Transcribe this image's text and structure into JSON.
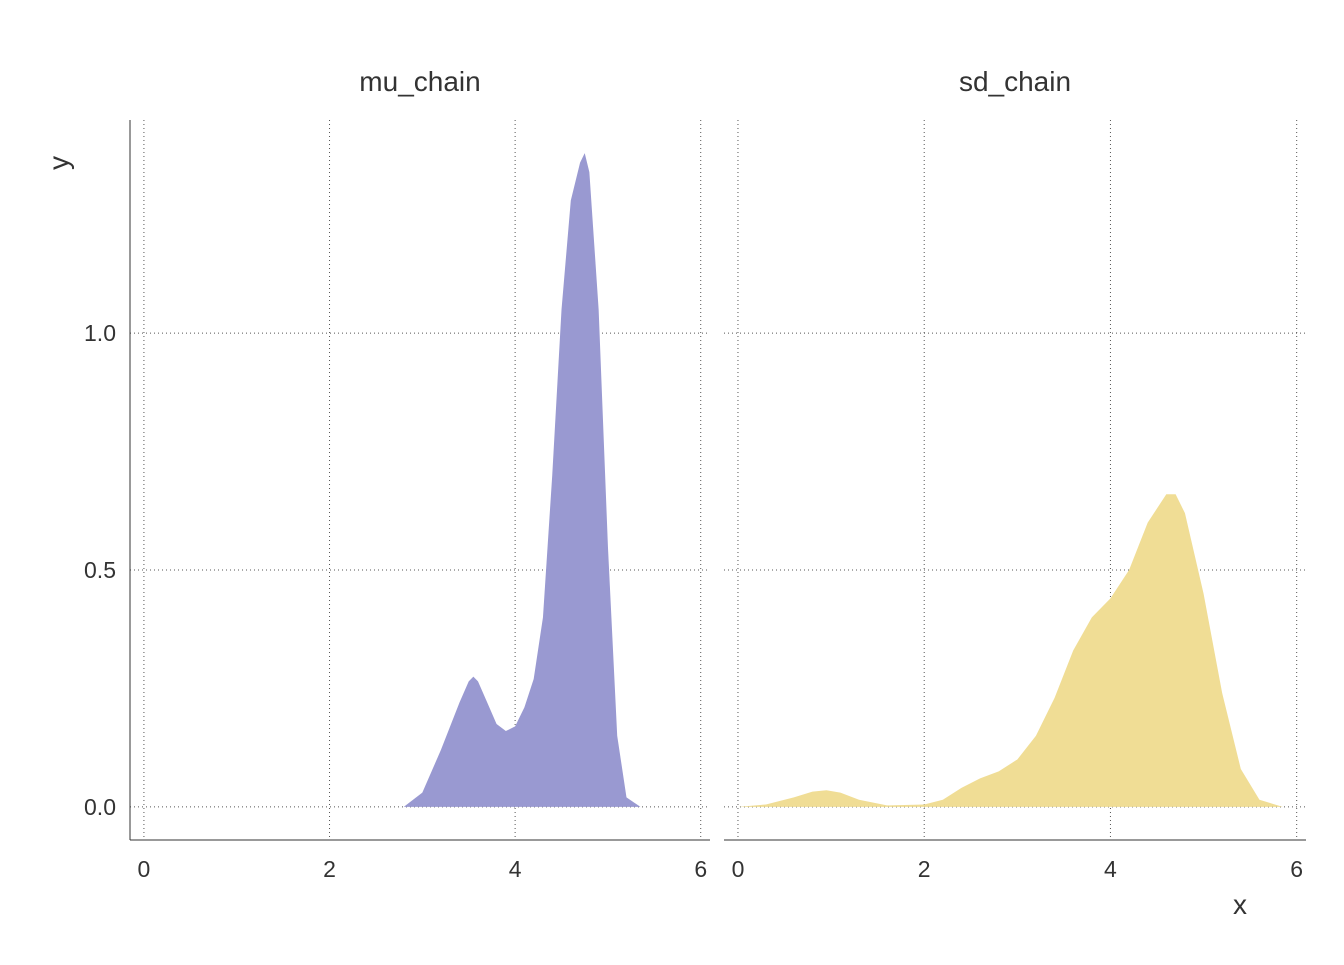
{
  "chart_data": {
    "type": "area",
    "xlabel": "x",
    "ylabel": "y",
    "xlim": [
      -0.15,
      6.1
    ],
    "ylim": [
      -0.07,
      1.45
    ],
    "x_ticks": [
      0,
      2,
      4,
      6
    ],
    "x_tick_labels": [
      "0",
      "2",
      "4",
      "6"
    ],
    "y_ticks": [
      0.0,
      0.5,
      1.0
    ],
    "y_tick_labels": [
      "0.0",
      "0.5",
      "1.0"
    ],
    "grid": true,
    "legend": "none",
    "panels": [
      {
        "title": "mu_chain",
        "color": "#9999d1",
        "x": [
          2.8,
          3.0,
          3.2,
          3.4,
          3.5,
          3.55,
          3.6,
          3.7,
          3.8,
          3.9,
          4.0,
          4.1,
          4.2,
          4.3,
          4.4,
          4.5,
          4.6,
          4.7,
          4.75,
          4.8,
          4.9,
          5.0,
          5.1,
          5.2,
          5.35
        ],
        "y": [
          0.0,
          0.03,
          0.12,
          0.22,
          0.265,
          0.275,
          0.265,
          0.22,
          0.175,
          0.16,
          0.17,
          0.21,
          0.27,
          0.4,
          0.7,
          1.05,
          1.28,
          1.36,
          1.38,
          1.34,
          1.05,
          0.55,
          0.15,
          0.02,
          0.0
        ]
      },
      {
        "title": "sd_chain",
        "color": "#f0dd95",
        "x": [
          0.0,
          0.3,
          0.6,
          0.8,
          0.95,
          1.1,
          1.3,
          1.6,
          2.0,
          2.2,
          2.4,
          2.6,
          2.8,
          3.0,
          3.2,
          3.4,
          3.6,
          3.8,
          4.0,
          4.2,
          4.4,
          4.6,
          4.7,
          4.8,
          5.0,
          5.2,
          5.4,
          5.6,
          5.85
        ],
        "y": [
          0.0,
          0.005,
          0.02,
          0.032,
          0.035,
          0.03,
          0.015,
          0.003,
          0.005,
          0.015,
          0.04,
          0.06,
          0.075,
          0.1,
          0.15,
          0.23,
          0.33,
          0.4,
          0.44,
          0.5,
          0.6,
          0.66,
          0.66,
          0.62,
          0.45,
          0.24,
          0.08,
          0.015,
          0.0
        ]
      }
    ]
  }
}
